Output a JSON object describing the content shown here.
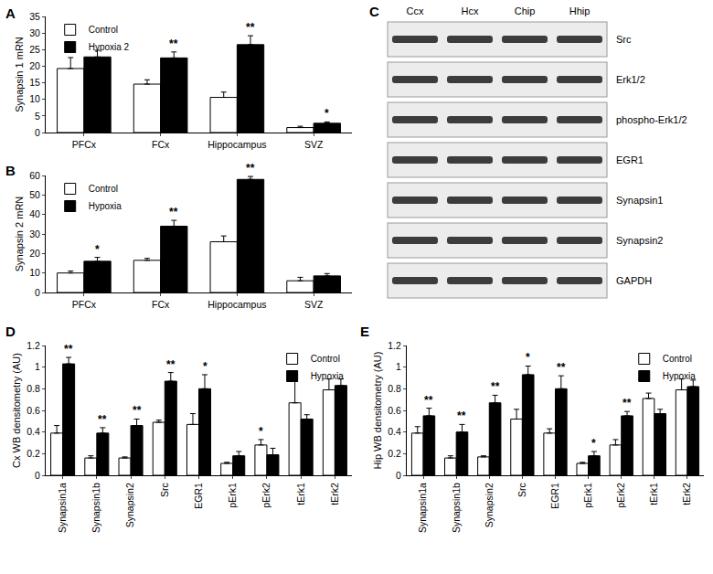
{
  "chart_data": [
    {
      "type": "bar",
      "title": "A",
      "y_label": "Synapsin 1 mRN",
      "categories": [
        "PFCx",
        "FCx",
        "Hippocampus",
        "SVZ"
      ],
      "series": [
        {
          "name": "Control",
          "color": "#ffffff",
          "values": [
            19.3,
            14.6,
            10.6,
            1.5
          ],
          "errors": [
            3.3,
            1.3,
            1.6,
            0.4
          ]
        },
        {
          "name": "Hypoxia 2",
          "color": "#000000",
          "values": [
            22.8,
            22.5,
            26.5,
            2.8
          ],
          "errors": [
            2.0,
            1.8,
            2.7,
            0.4
          ]
        }
      ],
      "ylim": [
        0,
        35
      ],
      "yticks": [
        0,
        5,
        10,
        15,
        20,
        25,
        30,
        35
      ],
      "legend": "upper left",
      "annotations": [
        {
          "text": "**",
          "category": "FCx",
          "series": "Hypoxia 2"
        },
        {
          "text": "**",
          "category": "Hippocampus",
          "series": "Hypoxia 2"
        },
        {
          "text": "*",
          "category": "SVZ",
          "series": "Hypoxia 2"
        }
      ]
    },
    {
      "type": "bar",
      "title": "B",
      "y_label": "Synapsin 2 mRN",
      "categories": [
        "PFCx",
        "FCx",
        "Hippocampus",
        "SVZ"
      ],
      "series": [
        {
          "name": "Control",
          "color": "#ffffff",
          "values": [
            10,
            16.5,
            26,
            6
          ],
          "errors": [
            1,
            1,
            3,
            1.8
          ]
        },
        {
          "name": "Hypoxia",
          "color": "#000000",
          "values": [
            16,
            34,
            58,
            8.5
          ],
          "errors": [
            2,
            3,
            1.5,
            1.2
          ]
        }
      ],
      "ylim": [
        0,
        60
      ],
      "yticks": [
        0,
        10,
        20,
        30,
        40,
        50,
        60
      ],
      "legend": "upper left",
      "annotations": [
        {
          "text": "*",
          "category": "PFCx",
          "series": "Hypoxia"
        },
        {
          "text": "**",
          "category": "FCx",
          "series": "Hypoxia"
        },
        {
          "text": "**",
          "category": "Hippocampus",
          "series": "Hypoxia"
        }
      ]
    },
    {
      "type": "bar",
      "title": "D",
      "y_label": "Cx WB densitometry (AU)",
      "categories": [
        "Synapsin1a",
        "Synapsin1b",
        "Synapsin2",
        "Src",
        "EGR1",
        "pErk1",
        "pErk2",
        "tErk1",
        "tErk2"
      ],
      "series": [
        {
          "name": "Control",
          "color": "#ffffff",
          "values": [
            0.39,
            0.16,
            0.16,
            0.49,
            0.47,
            0.11,
            0.28,
            0.67,
            0.79
          ],
          "errors": [
            0.07,
            0.02,
            0.01,
            0.02,
            0.1,
            0.01,
            0.05,
            0.2,
            0.1
          ]
        },
        {
          "name": "Hypoxia",
          "color": "#000000",
          "values": [
            1.03,
            0.39,
            0.46,
            0.87,
            0.8,
            0.18,
            0.19,
            0.52,
            0.83
          ],
          "errors": [
            0.06,
            0.05,
            0.06,
            0.08,
            0.13,
            0.04,
            0.06,
            0.04,
            0.06
          ]
        }
      ],
      "ylim": [
        0,
        1.2
      ],
      "yticks": [
        0,
        0.2,
        0.4,
        0.6,
        0.8,
        1,
        1.2
      ],
      "legend": "upper right",
      "annotations": [
        {
          "text": "**",
          "category": "Synapsin1a",
          "series": "Hypoxia"
        },
        {
          "text": "**",
          "category": "Synapsin1b",
          "series": "Hypoxia"
        },
        {
          "text": "**",
          "category": "Synapsin2",
          "series": "Hypoxia"
        },
        {
          "text": "**",
          "category": "Src",
          "series": "Hypoxia"
        },
        {
          "text": "*",
          "category": "EGR1",
          "series": "Hypoxia"
        },
        {
          "text": "*",
          "category": "pErk2",
          "series": "Control"
        }
      ]
    },
    {
      "type": "bar",
      "title": "E",
      "y_label": "Hip WB densitometry (AU)",
      "categories": [
        "Synapsin1a",
        "Synapsin1b",
        "Synapsin2",
        "Src",
        "EGR1",
        "pErk1",
        "pErk2",
        "tErk1",
        "tErk2"
      ],
      "series": [
        {
          "name": "Control",
          "color": "#ffffff",
          "values": [
            0.39,
            0.16,
            0.17,
            0.52,
            0.39,
            0.11,
            0.28,
            0.71,
            0.79
          ],
          "errors": [
            0.06,
            0.02,
            0.01,
            0.09,
            0.04,
            0.01,
            0.05,
            0.05,
            0.1
          ]
        },
        {
          "name": "Hypoxia",
          "color": "#000000",
          "values": [
            0.55,
            0.4,
            0.67,
            0.93,
            0.8,
            0.18,
            0.55,
            0.57,
            0.82
          ],
          "errors": [
            0.07,
            0.07,
            0.07,
            0.08,
            0.12,
            0.04,
            0.04,
            0.04,
            0.06
          ]
        }
      ],
      "ylim": [
        0,
        1.2
      ],
      "yticks": [
        0,
        0.2,
        0.4,
        0.6,
        0.8,
        1,
        1.2
      ],
      "legend": "upper right",
      "annotations": [
        {
          "text": "**",
          "category": "Synapsin1a",
          "series": "Hypoxia"
        },
        {
          "text": "**",
          "category": "Synapsin1b",
          "series": "Hypoxia"
        },
        {
          "text": "**",
          "category": "Synapsin2",
          "series": "Hypoxia"
        },
        {
          "text": "*",
          "category": "Src",
          "series": "Hypoxia"
        },
        {
          "text": "**",
          "category": "EGR1",
          "series": "Hypoxia"
        },
        {
          "text": "*",
          "category": "pErk1",
          "series": "Hypoxia"
        },
        {
          "text": "**",
          "category": "pErk2",
          "series": "Hypoxia"
        }
      ]
    }
  ],
  "blot": {
    "title": "C",
    "lanes": [
      "Ccx",
      "Hcx",
      "Chip",
      "Hhip"
    ],
    "rows": [
      "Src",
      "Erk1/2",
      "phospho-Erk1/2",
      "EGR1",
      "Synapsin1",
      "Synapsin2",
      "GAPDH"
    ]
  }
}
